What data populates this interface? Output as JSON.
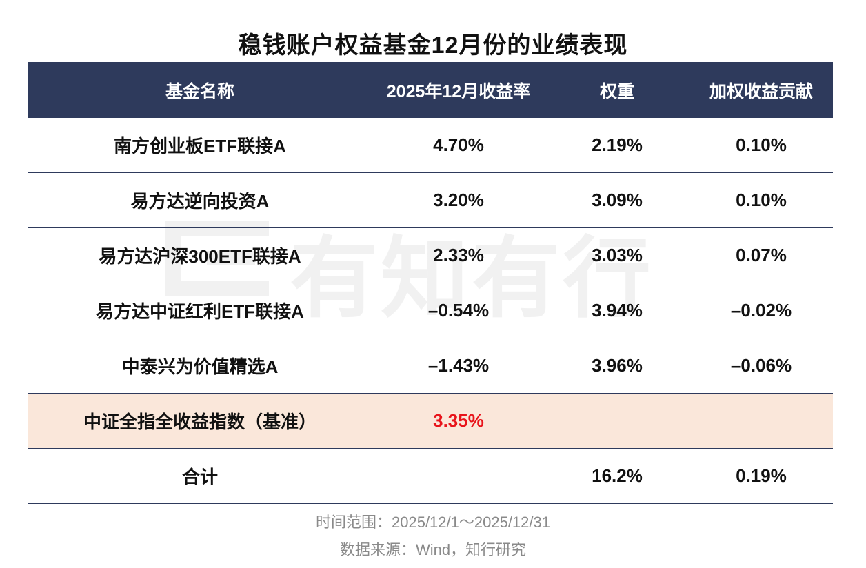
{
  "title": "稳钱账户权益基金12月份的业绩表现",
  "watermark": "有知有行",
  "chart_data": {
    "type": "table",
    "headers": [
      "基金名称",
      "2025年12月收益率",
      "权重",
      "加权收益贡献"
    ],
    "rows": [
      [
        "南方创业板ETF联接A",
        "4.70%",
        "2.19%",
        "0.10%"
      ],
      [
        "易方达逆向投资A",
        "3.20%",
        "3.09%",
        "0.10%"
      ],
      [
        "易方达沪深300ETF联接A",
        "2.33%",
        "3.03%",
        "0.07%"
      ],
      [
        "易方达中证红利ETF联接A",
        "–0.54%",
        "3.94%",
        "–0.02%"
      ],
      [
        "中泰兴为价值精选A",
        "–1.43%",
        "3.96%",
        "–0.06%"
      ],
      [
        "中证全指全收益指数（基准）",
        "3.35%",
        "",
        ""
      ],
      [
        "合计",
        "",
        "16.2%",
        "0.19%"
      ]
    ],
    "highlight_row": 5,
    "highlight_color": "#fae7da",
    "highlight_value_color": "#e8141b",
    "header_color": "#2e3a5c"
  },
  "footer": {
    "time_range": "时间范围：2025/12/1～2025/12/31",
    "source": "数据来源：Wind，知行研究"
  }
}
